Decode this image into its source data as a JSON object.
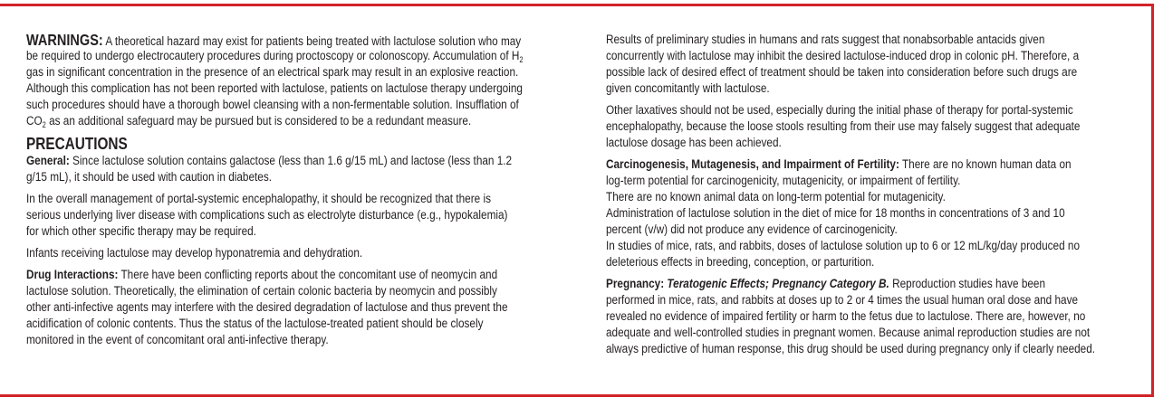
{
  "accent_color": "#d2232a",
  "left": [
    {
      "lead": "WARNINGS:",
      "lead_style": "big",
      "lines": [
        {
          "t": "A theoretical hazard may exist for patients being treated with lactulose solution who may"
        },
        {
          "t": "be required to undergo electrocautery procedures during proctoscopy or colonoscopy. Accumulation of H",
          "sub": "2"
        },
        {
          "t": "gas in significant concentration in the presence of an electrical spark may result in an explosive reaction."
        },
        {
          "t": "Although this complication has not been reported with lactulose, patients on lactulose therapy undergoing"
        },
        {
          "t": "such procedures should have a thorough bowel cleansing with a non-fermentable solution. Insufflation of"
        },
        {
          "t": "CO",
          "sub": "2",
          "after": " as an additional safeguard may be pursued but is considered to be a redundant measure."
        }
      ]
    },
    {
      "heading": "PRECAUTIONS"
    },
    {
      "lead": "General:",
      "lines": [
        {
          "t": "Since lactulose solution contains galactose (less than 1.6 g/15 mL) and lactose (less than 1.2"
        },
        {
          "t": "g/15 mL), it should be used with caution in diabetes."
        }
      ]
    },
    {
      "lines": [
        {
          "t": "In the overall management of portal-systemic encephalopathy, it should be recognized that there is"
        },
        {
          "t": "serious underlying liver disease with complications such as electrolyte disturbance (e.g., hypokalemia)"
        },
        {
          "t": "for which other specific therapy may be required."
        }
      ]
    },
    {
      "lines": [
        {
          "t": "Infants receiving lactulose may develop hyponatremia and dehydration."
        }
      ]
    },
    {
      "lead": "Drug Interactions:",
      "lines": [
        {
          "t": "There have been conflicting reports about the concomitant use of neomycin and"
        },
        {
          "t": "lactulose solution. Theoretically, the elimination of certain colonic bacteria by neomycin and possibly"
        },
        {
          "t": "other anti-infective agents may interfere with the desired degradation of lactulose and thus prevent the"
        },
        {
          "t": "acidification of colonic contents. Thus the status of the lactulose-treated patient should be closely"
        },
        {
          "t": "monitored in the event of concomitant oral anti-infective therapy."
        }
      ]
    }
  ],
  "right": [
    {
      "lines": [
        {
          "t": "Results of preliminary studies in humans and rats suggest that nonabsorbable antacids given"
        },
        {
          "t": "concurrently with lactulose may inhibit the desired lactulose-induced drop in colonic pH. Therefore, a"
        },
        {
          "t": "possible lack of desired effect of treatment should be taken into consideration before such drugs are"
        },
        {
          "t": "given concomitantly with lactulose."
        }
      ]
    },
    {
      "lines": [
        {
          "t": "Other laxatives should not be used, especially during the initial phase of therapy for portal-systemic"
        },
        {
          "t": "encephalopathy, because the loose stools resulting from their use may falsely suggest that adequate"
        },
        {
          "t": "lactulose dosage has been achieved."
        }
      ]
    },
    {
      "lead": "Carcinogenesis, Mutagenesis, and Impairment of Fertility:",
      "lines": [
        {
          "t": "There are no known human data on"
        },
        {
          "t": "log-term potential for carcinogenicity, mutagenicity, or impairment of fertility."
        },
        {
          "t": "There are no known animal data on long-term potential for mutagenicity."
        },
        {
          "t": "Administration of lactulose solution in the diet of mice for 18 months in concentrations of 3 and 10"
        },
        {
          "t": "percent (v/w) did not produce any evidence of carcinogenicity."
        },
        {
          "t": "In studies of mice, rats, and rabbits, doses of lactulose solution up to 6 or 12 mL/kg/day produced no"
        },
        {
          "t": "deleterious effects in breeding, conception, or parturition."
        }
      ]
    },
    {
      "lead": "Pregnancy:",
      "lead_italic": "Teratogenic Effects; Pregnancy Category B.",
      "lines": [
        {
          "t": "Reproduction studies have been"
        },
        {
          "t": "performed in mice, rats, and rabbits at doses up to 2 or 4 times the usual human oral dose and have"
        },
        {
          "t": "revealed no evidence of impaired fertility or harm to the fetus due to lactulose. There are, however, no"
        },
        {
          "t": "adequate and well-controlled studies in pregnant women. Because animal reproduction studies are not"
        },
        {
          "t": "always predictive of human response, this drug should be used during pregnancy only if clearly needed."
        }
      ]
    }
  ]
}
